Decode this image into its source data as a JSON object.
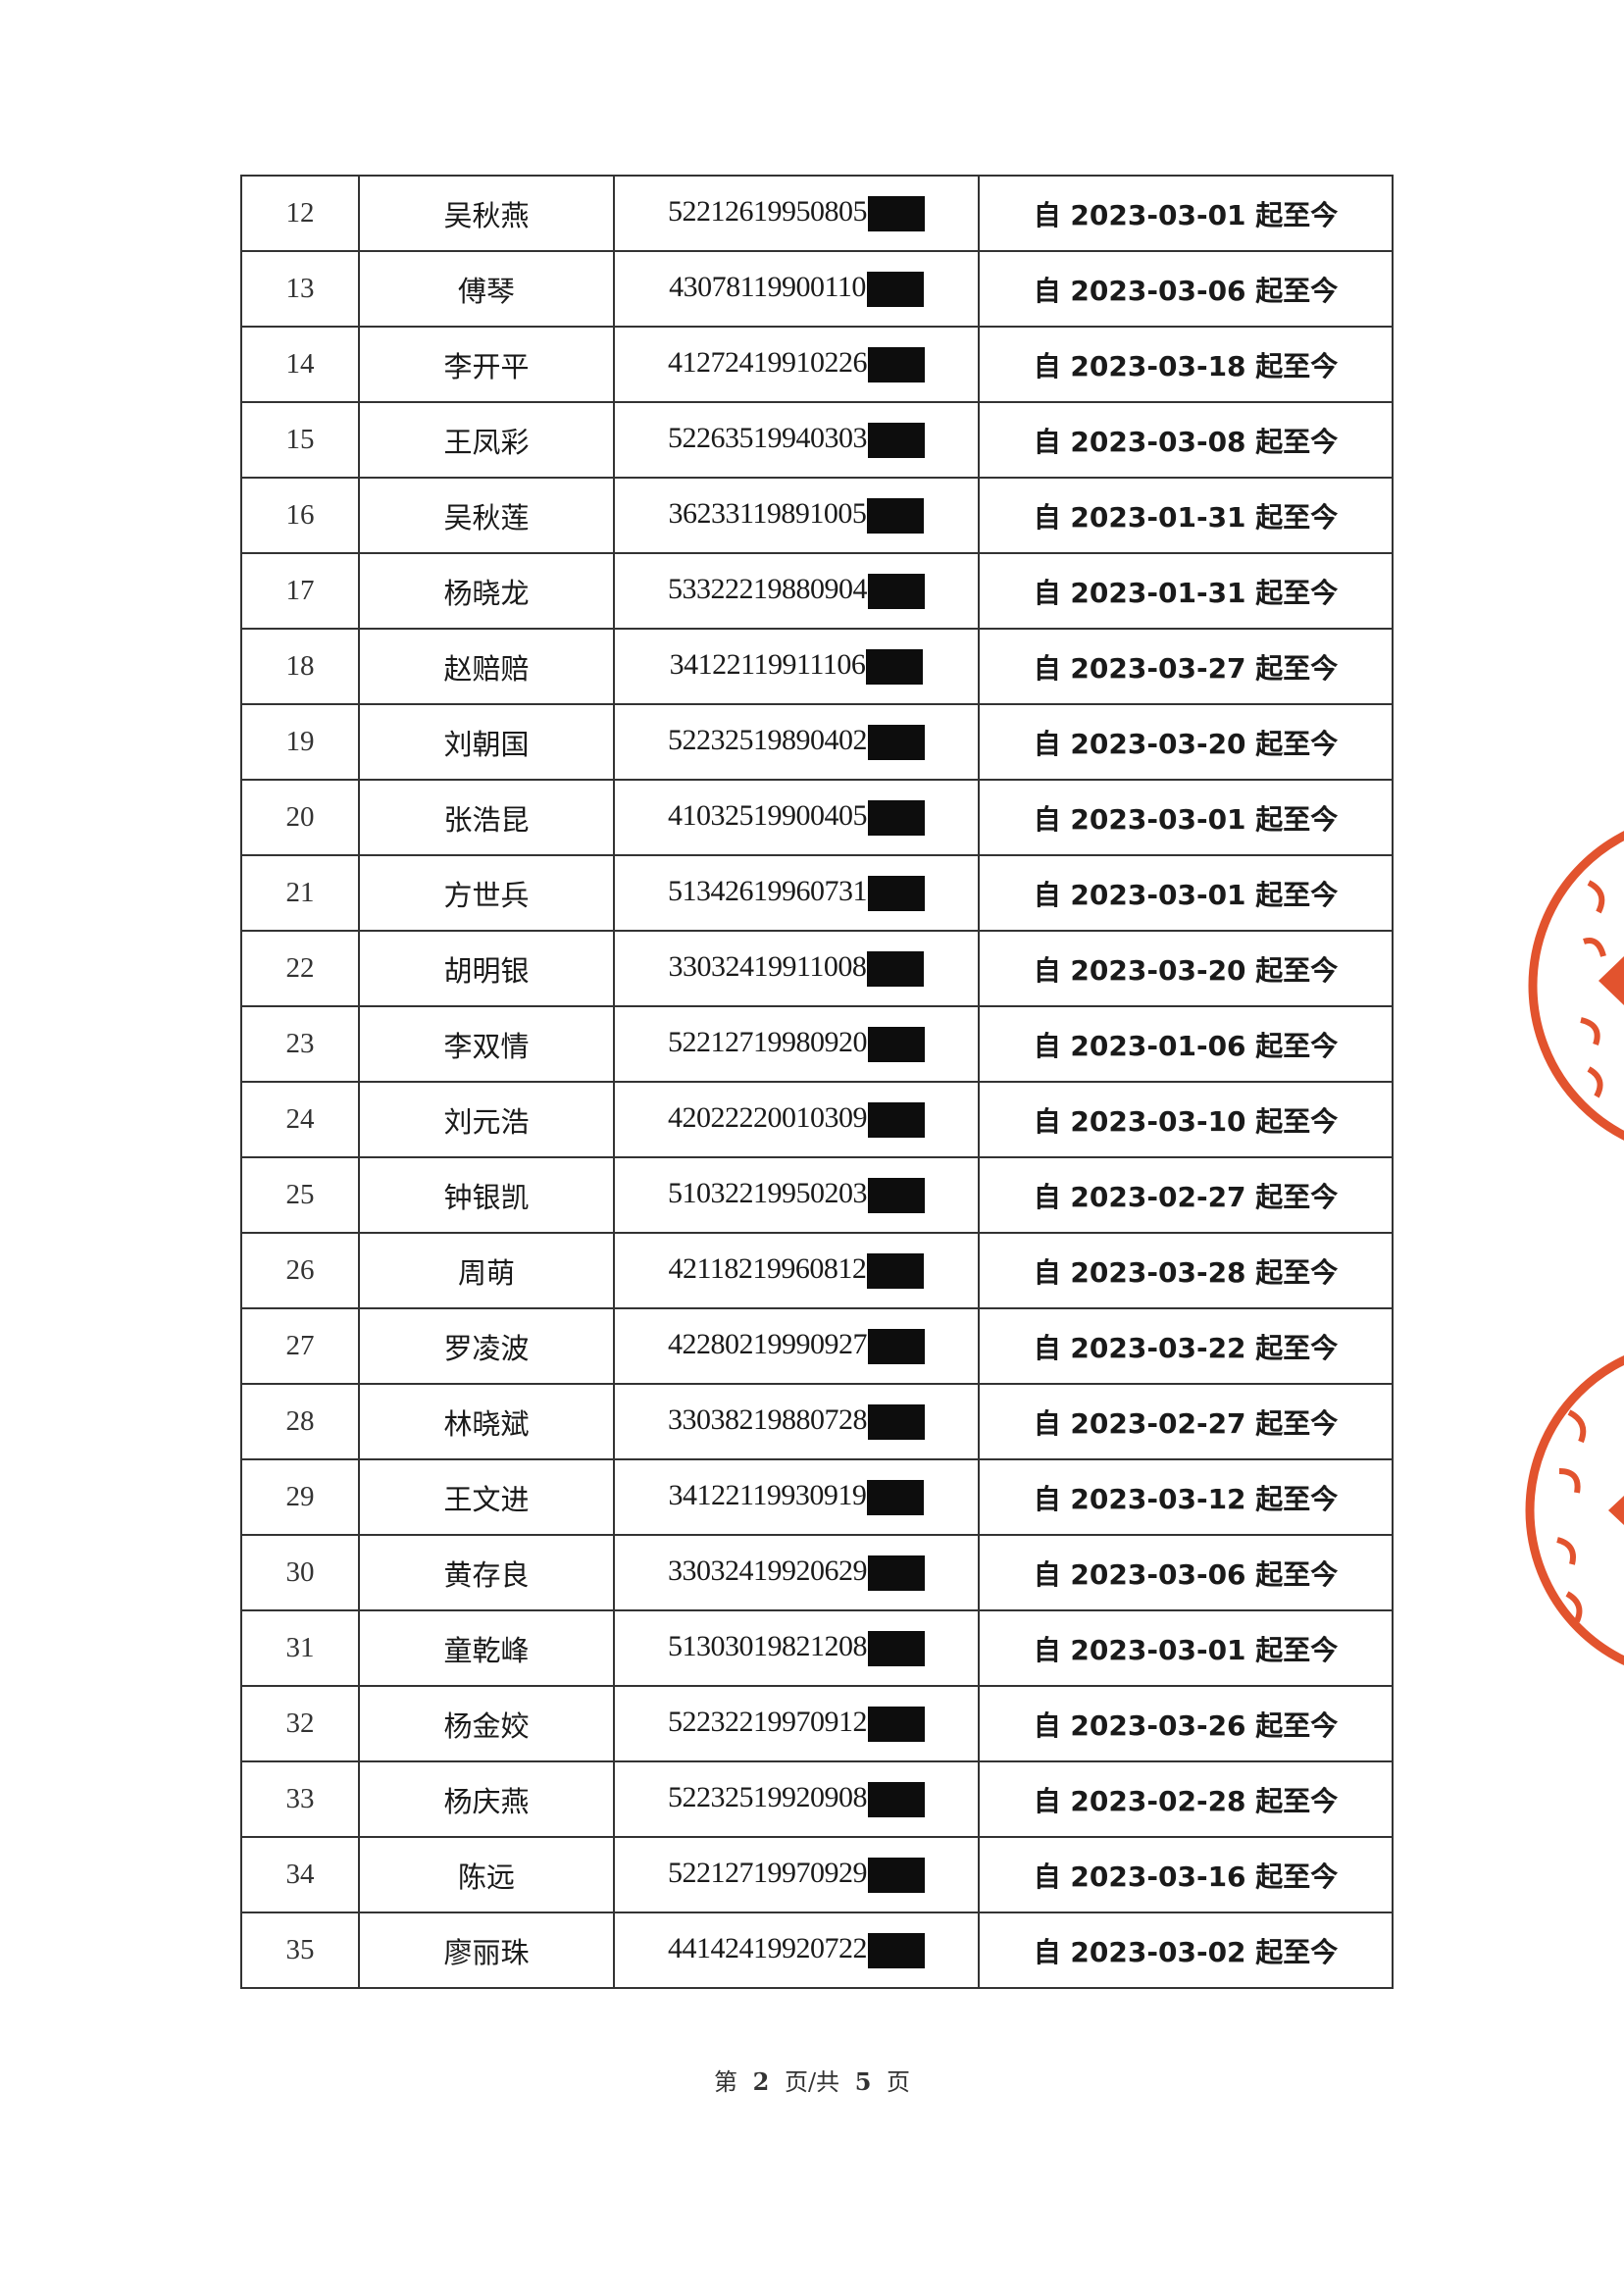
{
  "table": {
    "rows": [
      {
        "no": "12",
        "name": "吴秋燕",
        "id": "52212619950805",
        "period": "自 2023-03-01 起至今"
      },
      {
        "no": "13",
        "name": "傅琴",
        "id": "43078119900110",
        "period": "自 2023-03-06 起至今"
      },
      {
        "no": "14",
        "name": "李开平",
        "id": "41272419910226",
        "period": "自 2023-03-18 起至今"
      },
      {
        "no": "15",
        "name": "王凤彩",
        "id": "52263519940303",
        "period": "自 2023-03-08 起至今"
      },
      {
        "no": "16",
        "name": "吴秋莲",
        "id": "36233119891005",
        "period": "自 2023-01-31 起至今"
      },
      {
        "no": "17",
        "name": "杨晓龙",
        "id": "53322219880904",
        "period": "自 2023-01-31 起至今"
      },
      {
        "no": "18",
        "name": "赵赔赔",
        "id": "34122119911106",
        "period": "自 2023-03-27 起至今"
      },
      {
        "no": "19",
        "name": "刘朝国",
        "id": "52232519890402",
        "period": "自 2023-03-20 起至今"
      },
      {
        "no": "20",
        "name": "张浩昆",
        "id": "41032519900405",
        "period": "自 2023-03-01 起至今"
      },
      {
        "no": "21",
        "name": "方世兵",
        "id": "51342619960731",
        "period": "自 2023-03-01 起至今"
      },
      {
        "no": "22",
        "name": "胡明银",
        "id": "33032419911008",
        "period": "自 2023-03-20 起至今"
      },
      {
        "no": "23",
        "name": "李双情",
        "id": "52212719980920",
        "period": "自 2023-01-06 起至今"
      },
      {
        "no": "24",
        "name": "刘元浩",
        "id": "42022220010309",
        "period": "自 2023-03-10 起至今"
      },
      {
        "no": "25",
        "name": "钟银凯",
        "id": "51032219950203",
        "period": "自 2023-02-27 起至今"
      },
      {
        "no": "26",
        "name": "周萌",
        "id": "42118219960812",
        "period": "自 2023-03-28 起至今"
      },
      {
        "no": "27",
        "name": "罗凌波",
        "id": "42280219990927",
        "period": "自 2023-03-22 起至今"
      },
      {
        "no": "28",
        "name": "林晓斌",
        "id": "33038219880728",
        "period": "自 2023-02-27 起至今"
      },
      {
        "no": "29",
        "name": "王文进",
        "id": "34122119930919",
        "period": "自 2023-03-12 起至今"
      },
      {
        "no": "30",
        "name": "黄存良",
        "id": "33032419920629",
        "period": "自 2023-03-06 起至今"
      },
      {
        "no": "31",
        "name": "童乾峰",
        "id": "51303019821208",
        "period": "自 2023-03-01 起至今"
      },
      {
        "no": "32",
        "name": "杨金姣",
        "id": "52232219970912",
        "period": "自 2023-03-26 起至今"
      },
      {
        "no": "33",
        "name": "杨庆燕",
        "id": "52232519920908",
        "period": "自 2023-02-28 起至今"
      },
      {
        "no": "34",
        "name": "陈远",
        "id": "52212719970929",
        "period": "自 2023-03-16 起至今"
      },
      {
        "no": "35",
        "name": "廖丽珠",
        "id": "44142419920722",
        "period": "自 2023-03-02 起至今"
      }
    ]
  },
  "footer": {
    "prefix": "第",
    "page": "2",
    "middle": "页/共",
    "total": "5",
    "suffix": "页"
  },
  "stamp_color": "#e2532e"
}
